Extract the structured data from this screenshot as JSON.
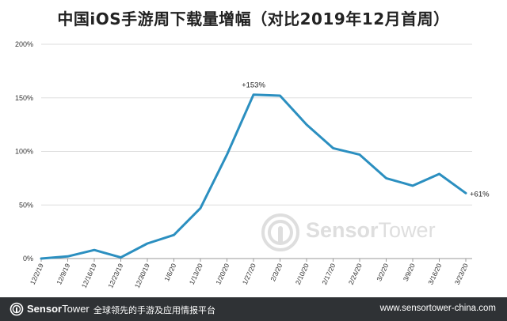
{
  "chart_data": {
    "type": "line",
    "title": "中国iOS手游周下载量增幅（对比2019年12月首周）",
    "categories": [
      "12/2/19",
      "12/9/19",
      "12/16/19",
      "12/23/19",
      "12/30/19",
      "1/6/20",
      "1/13/20",
      "1/20/20",
      "1/27/20",
      "2/3/20",
      "2/10/20",
      "2/17/20",
      "2/24/20",
      "3/2/20",
      "3/9/20",
      "3/16/20",
      "3/23/20"
    ],
    "series": [
      {
        "values": [
          0,
          2,
          8,
          1,
          14,
          22,
          47,
          97,
          153,
          152,
          125,
          103,
          97,
          75,
          68,
          79,
          61
        ]
      }
    ],
    "ylim": [
      0,
      200
    ],
    "yticks": [
      "0%",
      "50%",
      "100%",
      "150%",
      "200%"
    ],
    "grid": true,
    "line_color": "#2b8fc0",
    "annotations": [
      {
        "category": "1/27/20",
        "text": "+153%"
      },
      {
        "category": "3/23/20",
        "text": "+61%"
      }
    ]
  },
  "watermark": {
    "brand_sensor": "Sensor",
    "brand_tower": "Tower"
  },
  "footer": {
    "brand_sensor": "Sensor",
    "brand_tower": "Tower",
    "tagline": "全球领先的手游及应用情报平台",
    "url": "www.sensortower-china.com",
    "background": "#2f3235"
  }
}
